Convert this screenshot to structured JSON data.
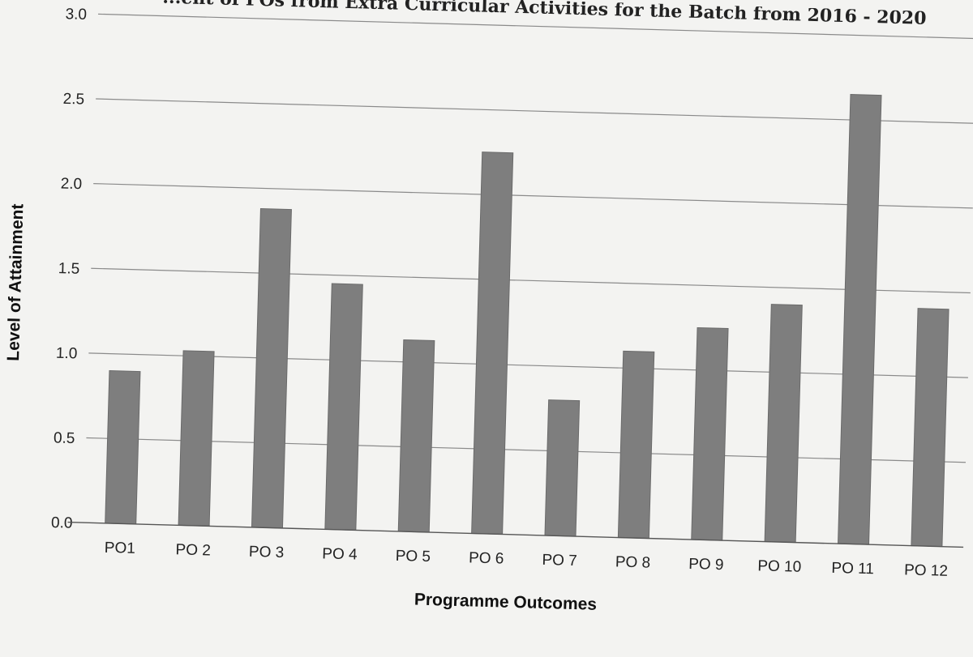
{
  "chart_data": {
    "type": "bar",
    "title": "...ent of POs from Extra Curricular Activities for the Batch from 2016 - 2020",
    "xlabel": "Programme Outcomes",
    "ylabel": "Level of Attainment",
    "categories": [
      "PO1",
      "PO 2",
      "PO 3",
      "PO 4",
      "PO 5",
      "PO 6",
      "PO 7",
      "PO 8",
      "PO 9",
      "PO 10",
      "PO 11",
      "PO 12"
    ],
    "values": [
      0.9,
      1.03,
      1.88,
      1.45,
      1.13,
      2.25,
      0.8,
      1.1,
      1.25,
      1.4,
      2.65,
      1.4
    ],
    "ylim": [
      0,
      3
    ],
    "yticks": [
      "0.0",
      "0.5",
      "1.0",
      "1.5",
      "2.0",
      "2.5",
      "3.0"
    ],
    "grid": true,
    "legend": "none",
    "colors": {
      "bar": "#7e7e7e",
      "grid": "#8a8a8a"
    }
  }
}
